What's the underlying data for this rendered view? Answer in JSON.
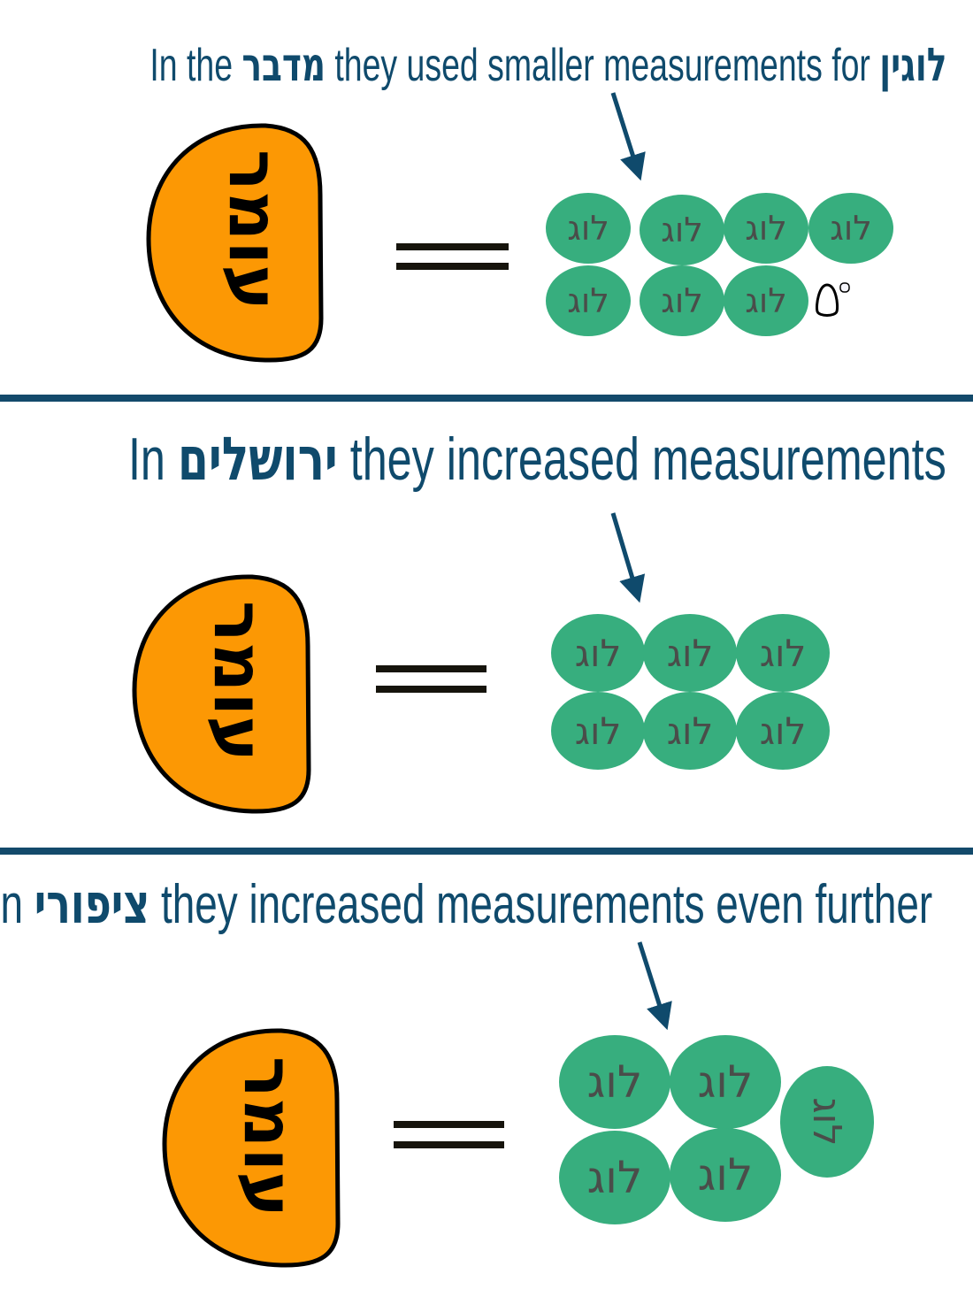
{
  "sections": [
    {
      "title_pre": "In the ",
      "title_heb1": "מדבר",
      "title_mid": " they used smaller measurements for ",
      "title_heb2": "לוגין",
      "blob_label": "עומר",
      "unit_label": "לוג",
      "unit_count": 7,
      "extra_icon": "egg-icon"
    },
    {
      "title_pre": "In ",
      "title_heb1": "ירושלים",
      "title_mid": " they increased measurements",
      "blob_label": "עומר",
      "unit_label": "לוג",
      "unit_count": 6
    },
    {
      "title_pre": "In ",
      "title_heb1": "ציפורי",
      "title_mid": " they increased measurements even further",
      "blob_label": "עומר",
      "unit_label": "לוג",
      "unit_count": 5
    }
  ],
  "colors": {
    "title": "#0f4a6c",
    "divider": "#134a6b",
    "blob": "#fc9804",
    "log": "#37ae7e",
    "log_text": "#4a4d4a"
  }
}
